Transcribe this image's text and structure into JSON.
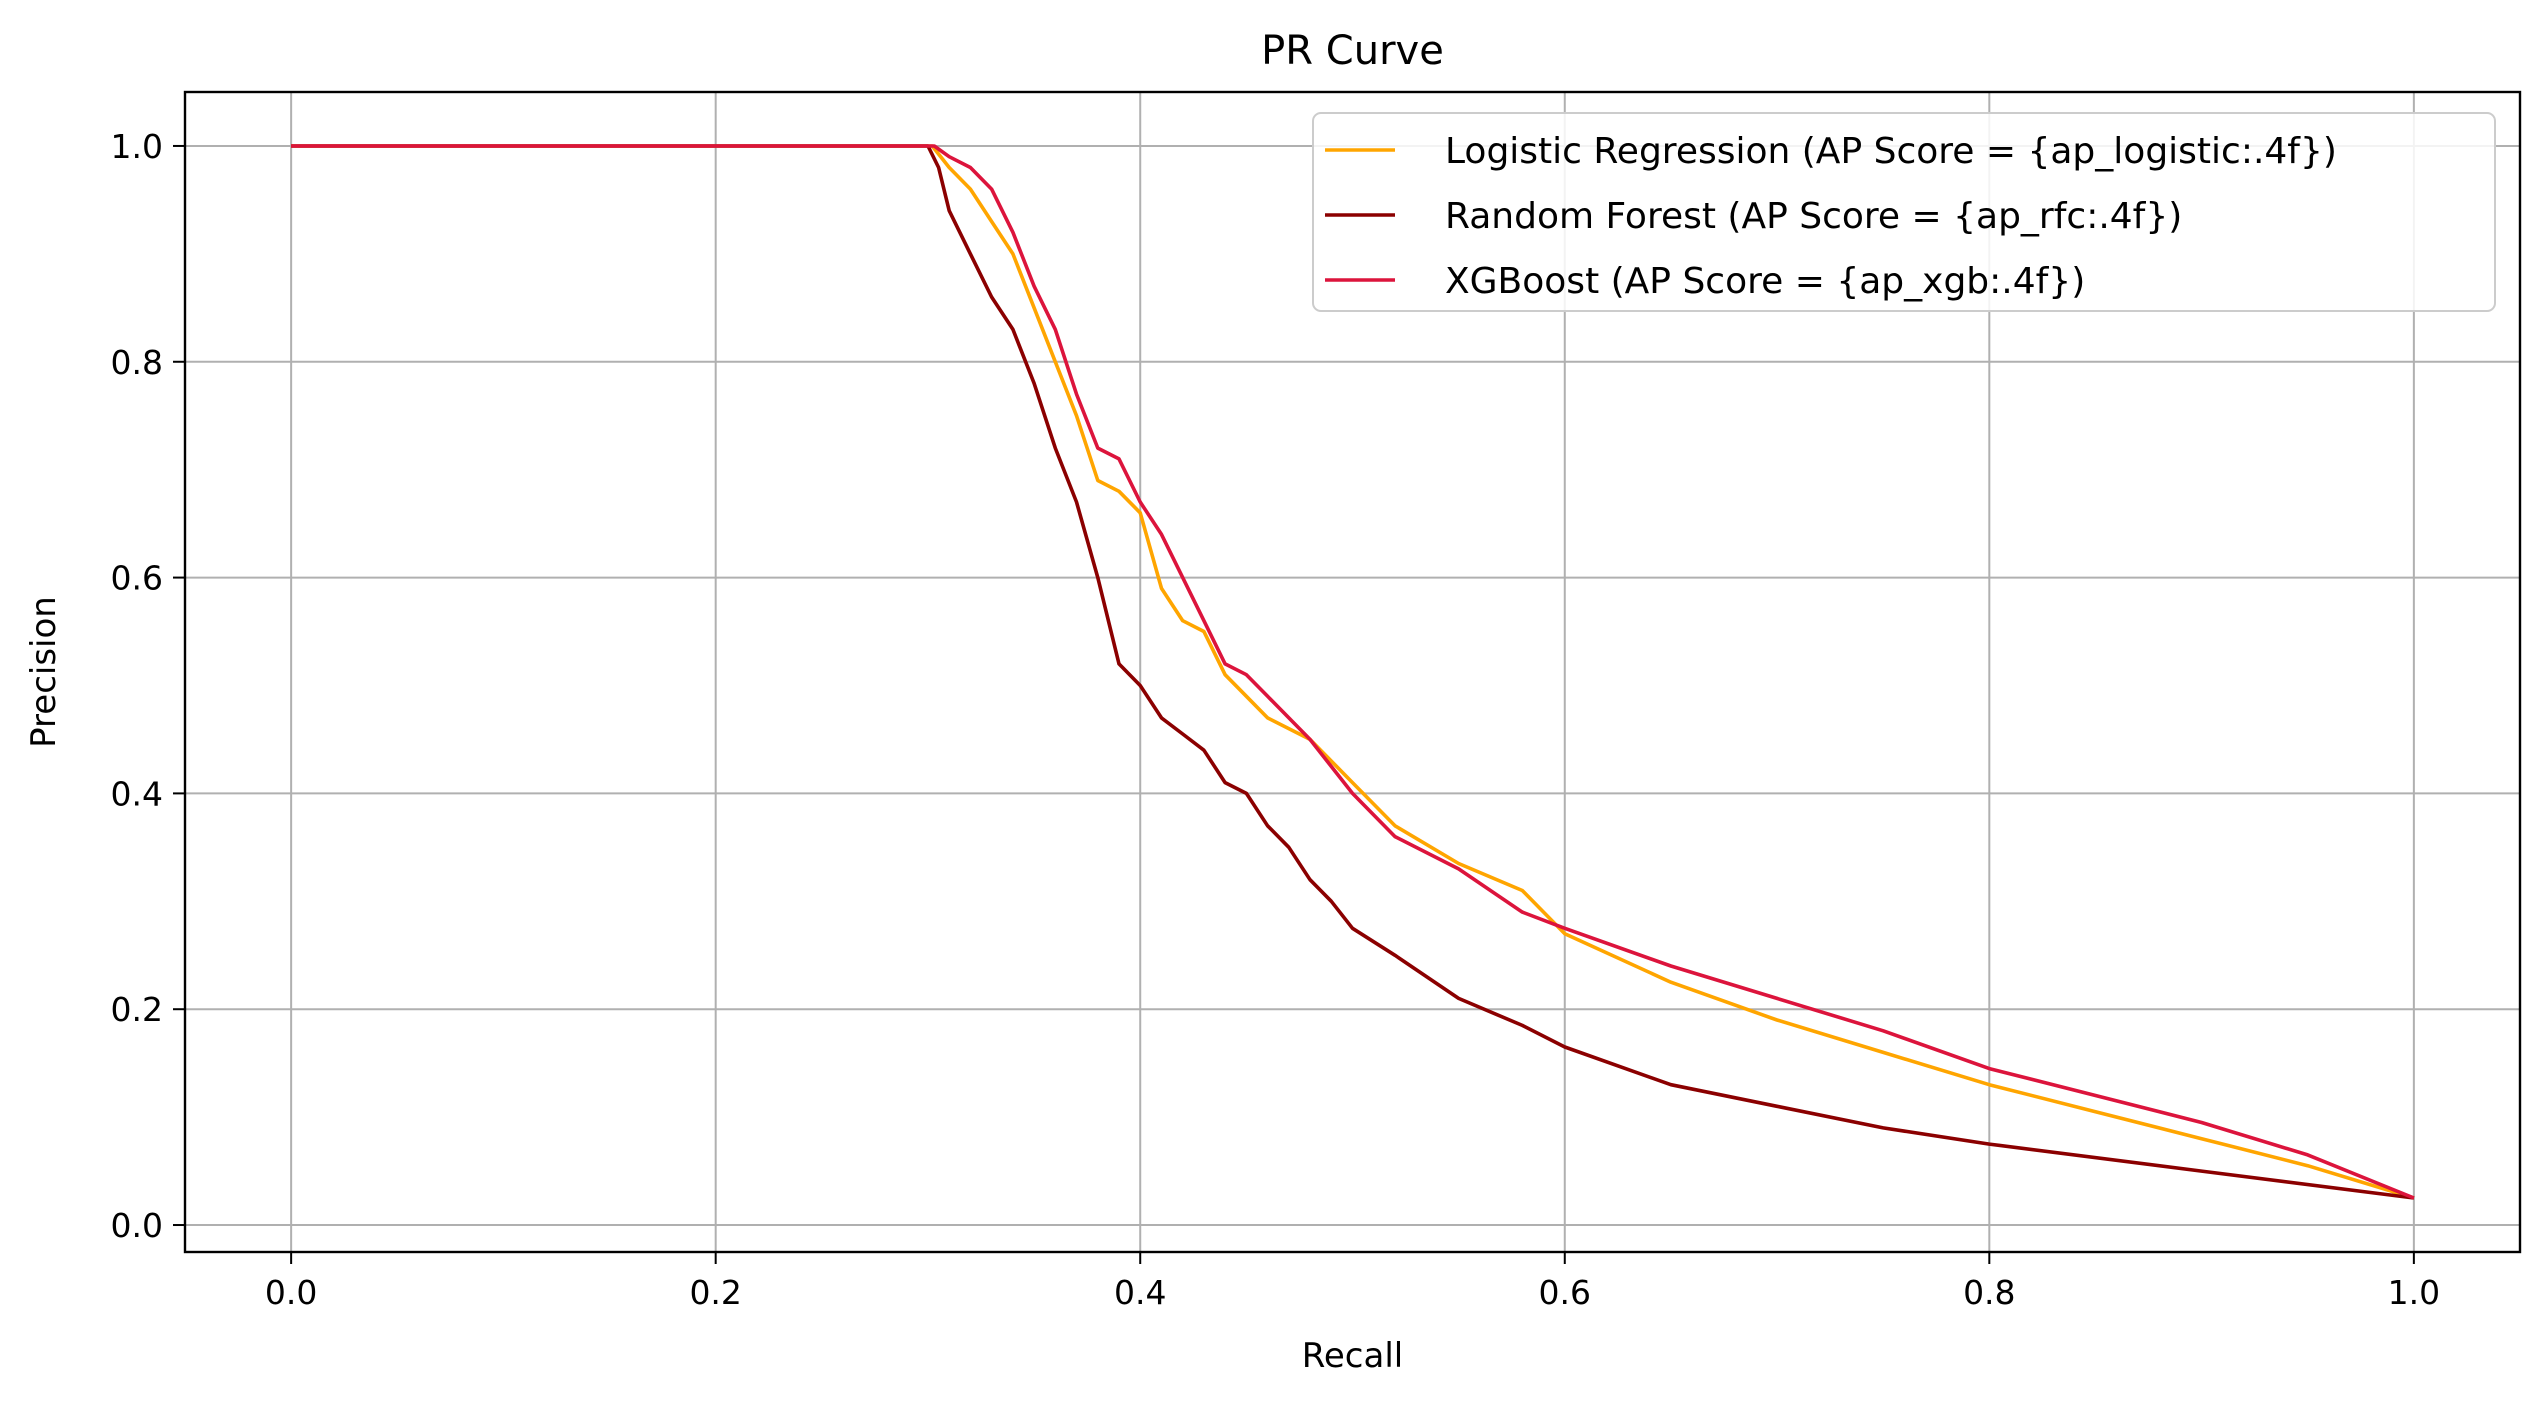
{
  "chart_data": {
    "type": "line",
    "title": "PR Curve",
    "xlabel": "Recall",
    "ylabel": "Precision",
    "xlim": [
      -0.05,
      1.05
    ],
    "ylim": [
      -0.025,
      1.05
    ],
    "xticks": [
      0.0,
      0.2,
      0.4,
      0.6,
      0.8,
      1.0
    ],
    "yticks": [
      0.0,
      0.2,
      0.4,
      0.6,
      0.8,
      1.0
    ],
    "xtick_labels": [
      "0.0",
      "0.2",
      "0.4",
      "0.6",
      "0.8",
      "1.0"
    ],
    "ytick_labels": [
      "0.0",
      "0.2",
      "0.4",
      "0.6",
      "0.8",
      "1.0"
    ],
    "grid": true,
    "legend_position": "top-right",
    "series": [
      {
        "name": "Logistic Regression (AP Score = {ap_logistic:.4f})",
        "color": "#FFA500",
        "x": [
          0.0,
          0.302,
          0.31,
          0.32,
          0.33,
          0.34,
          0.35,
          0.36,
          0.37,
          0.38,
          0.39,
          0.4,
          0.41,
          0.42,
          0.43,
          0.44,
          0.45,
          0.46,
          0.48,
          0.5,
          0.52,
          0.55,
          0.58,
          0.6,
          0.65,
          0.7,
          0.75,
          0.8,
          0.85,
          0.9,
          0.95,
          1.0
        ],
        "y": [
          1.0,
          1.0,
          0.98,
          0.96,
          0.93,
          0.9,
          0.85,
          0.8,
          0.75,
          0.69,
          0.68,
          0.66,
          0.59,
          0.56,
          0.55,
          0.51,
          0.49,
          0.47,
          0.45,
          0.41,
          0.37,
          0.335,
          0.31,
          0.27,
          0.225,
          0.19,
          0.16,
          0.13,
          0.105,
          0.08,
          0.055,
          0.025
        ]
      },
      {
        "name": "Random Forest (AP Score = {ap_rfc:.4f})",
        "color": "#8B0000",
        "x": [
          0.0,
          0.3,
          0.305,
          0.31,
          0.32,
          0.33,
          0.34,
          0.35,
          0.36,
          0.37,
          0.38,
          0.39,
          0.4,
          0.41,
          0.42,
          0.43,
          0.44,
          0.45,
          0.46,
          0.47,
          0.48,
          0.49,
          0.5,
          0.52,
          0.55,
          0.58,
          0.6,
          0.65,
          0.7,
          0.75,
          0.8,
          0.9,
          1.0
        ],
        "y": [
          1.0,
          1.0,
          0.98,
          0.94,
          0.9,
          0.86,
          0.83,
          0.78,
          0.72,
          0.67,
          0.6,
          0.52,
          0.5,
          0.47,
          0.455,
          0.44,
          0.41,
          0.4,
          0.37,
          0.35,
          0.32,
          0.3,
          0.275,
          0.25,
          0.21,
          0.185,
          0.165,
          0.13,
          0.11,
          0.09,
          0.075,
          0.05,
          0.025
        ]
      },
      {
        "name": "XGBoost (AP Score = {ap_xgb:.4f})",
        "color": "#DC143C",
        "x": [
          0.0,
          0.303,
          0.31,
          0.32,
          0.33,
          0.34,
          0.35,
          0.36,
          0.37,
          0.38,
          0.39,
          0.4,
          0.41,
          0.42,
          0.43,
          0.44,
          0.45,
          0.46,
          0.48,
          0.5,
          0.52,
          0.55,
          0.58,
          0.6,
          0.65,
          0.7,
          0.75,
          0.8,
          0.85,
          0.9,
          0.95,
          1.0
        ],
        "y": [
          1.0,
          1.0,
          0.99,
          0.98,
          0.96,
          0.92,
          0.87,
          0.83,
          0.77,
          0.72,
          0.71,
          0.67,
          0.64,
          0.6,
          0.56,
          0.52,
          0.51,
          0.49,
          0.45,
          0.4,
          0.36,
          0.33,
          0.29,
          0.275,
          0.24,
          0.21,
          0.18,
          0.145,
          0.12,
          0.095,
          0.065,
          0.025
        ]
      }
    ]
  }
}
